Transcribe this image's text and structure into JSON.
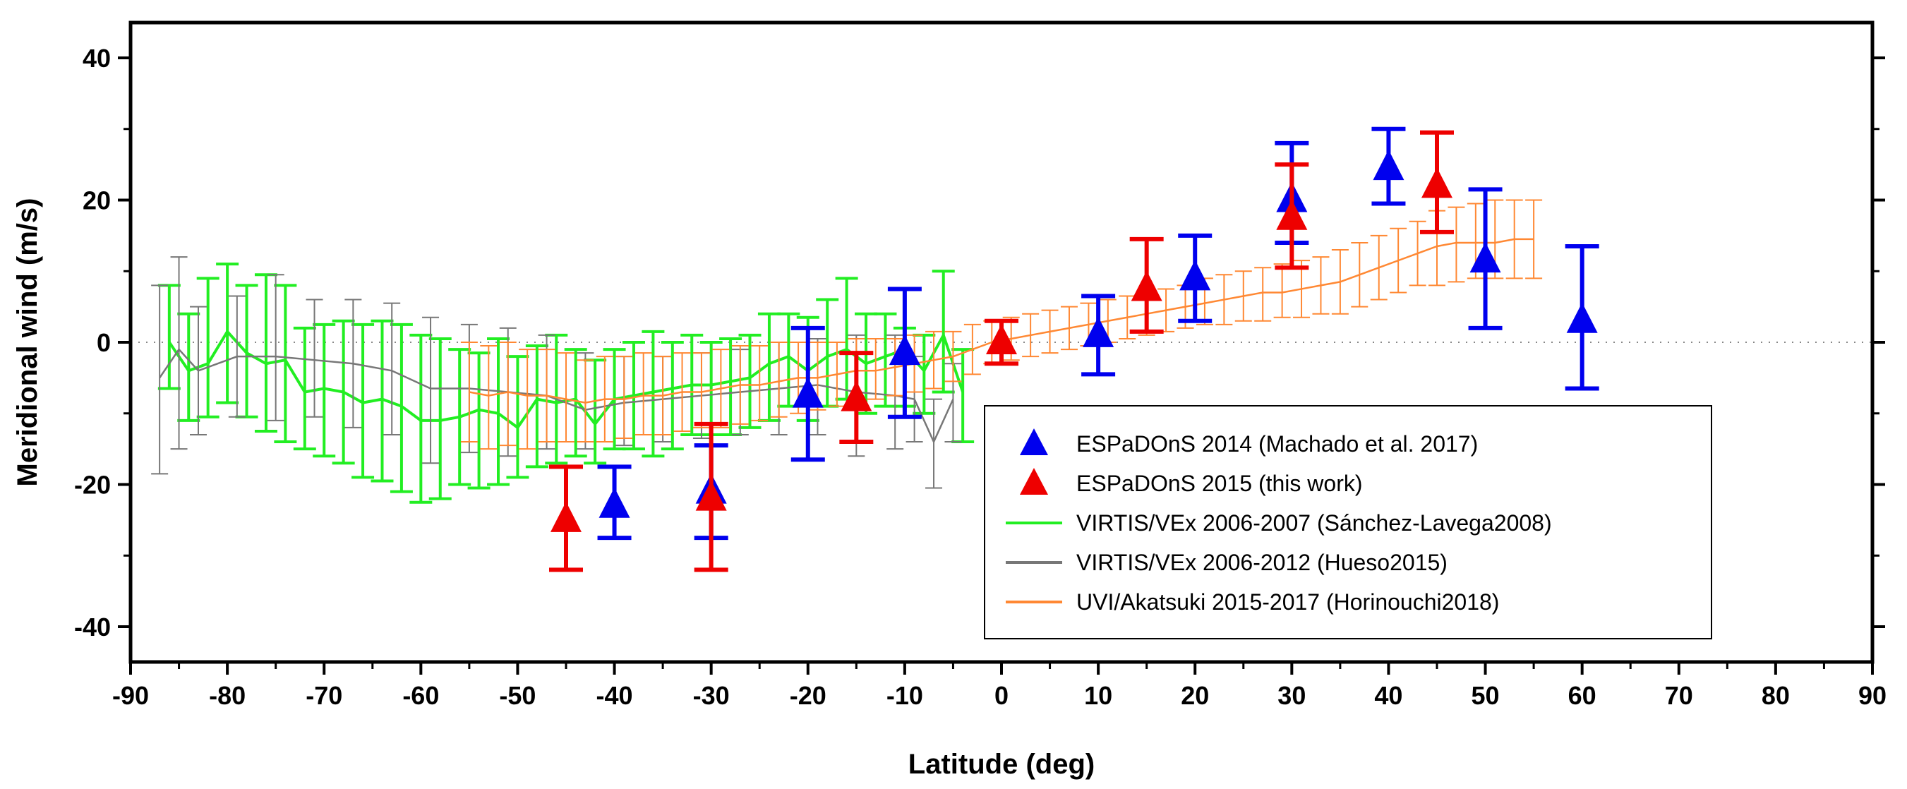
{
  "chart_data": {
    "type": "scatter",
    "title": "",
    "xlabel": "Latitude (deg)",
    "ylabel": "Meridional wind (m/s)",
    "xlim": [
      -90,
      90
    ],
    "ylim": [
      -45,
      45
    ],
    "xticks": [
      -90,
      -80,
      -70,
      -60,
      -50,
      -40,
      -30,
      -20,
      -10,
      0,
      10,
      20,
      30,
      40,
      50,
      60,
      70,
      80,
      90
    ],
    "yticks": [
      -40,
      -20,
      0,
      20,
      40
    ],
    "zero_line": "dotted",
    "legend_position": "bottom-right",
    "series": [
      {
        "name": "ESPaDOnS 2014 (Machado et al. 2017)",
        "kind": "markers",
        "marker": "triangle",
        "color": "#0000ee",
        "points": [
          {
            "x": -40,
            "y": -23,
            "lo": -27.5,
            "hi": -17.5
          },
          {
            "x": -30,
            "y": -21,
            "lo": -27.5,
            "hi": -14.5
          },
          {
            "x": -20,
            "y": -7.5,
            "lo": -16.5,
            "hi": 2
          },
          {
            "x": -10,
            "y": -1.5,
            "lo": -10.5,
            "hi": 7.5
          },
          {
            "x": 10,
            "y": 1,
            "lo": -4.5,
            "hi": 6.5
          },
          {
            "x": 20,
            "y": 9,
            "lo": 3,
            "hi": 15
          },
          {
            "x": 30,
            "y": 20,
            "lo": 14,
            "hi": 28
          },
          {
            "x": 40,
            "y": 24.5,
            "lo": 19.5,
            "hi": 30
          },
          {
            "x": 50,
            "y": 11.5,
            "lo": 2,
            "hi": 21.5
          },
          {
            "x": 60,
            "y": 3,
            "lo": -6.5,
            "hi": 13.5
          }
        ]
      },
      {
        "name": "ESPaDOnS 2015 (this work)",
        "kind": "markers",
        "marker": "triangle",
        "color": "#ee0000",
        "points": [
          {
            "x": -45,
            "y": -25,
            "lo": -32,
            "hi": -17.5
          },
          {
            "x": -30,
            "y": -22,
            "lo": -32,
            "hi": -11.5
          },
          {
            "x": -15,
            "y": -8,
            "lo": -14,
            "hi": -1.5
          },
          {
            "x": 0,
            "y": 0,
            "lo": -3,
            "hi": 3
          },
          {
            "x": 15,
            "y": 7.5,
            "lo": 1.5,
            "hi": 14.5
          },
          {
            "x": 30,
            "y": 17.5,
            "lo": 10.5,
            "hi": 25
          },
          {
            "x": 45,
            "y": 22,
            "lo": 15.5,
            "hi": 29.5
          }
        ]
      },
      {
        "name": "VIRTIS/VEx 2006-2007 (Sánchez-Lavega2008)",
        "kind": "line",
        "color": "#22ee22",
        "points": [
          {
            "x": -86,
            "y": 0,
            "lo": -6.5,
            "hi": 8
          },
          {
            "x": -84,
            "y": -4,
            "lo": -11,
            "hi": 4
          },
          {
            "x": -82,
            "y": -3,
            "lo": -10.5,
            "hi": 9
          },
          {
            "x": -80,
            "y": 1.5,
            "lo": -8.5,
            "hi": 11
          },
          {
            "x": -78,
            "y": -1.5,
            "lo": -10.5,
            "hi": 8
          },
          {
            "x": -76,
            "y": -3,
            "lo": -12.5,
            "hi": 9.5
          },
          {
            "x": -74,
            "y": -2.5,
            "lo": -14,
            "hi": 8
          },
          {
            "x": -72,
            "y": -7,
            "lo": -15,
            "hi": 2
          },
          {
            "x": -70,
            "y": -6.5,
            "lo": -16,
            "hi": 2.5
          },
          {
            "x": -68,
            "y": -7,
            "lo": -17,
            "hi": 3
          },
          {
            "x": -66,
            "y": -8.5,
            "lo": -19,
            "hi": 2.5
          },
          {
            "x": -64,
            "y": -8,
            "lo": -19.5,
            "hi": 3
          },
          {
            "x": -62,
            "y": -9,
            "lo": -21,
            "hi": 2.5
          },
          {
            "x": -60,
            "y": -11,
            "lo": -22.5,
            "hi": 1
          },
          {
            "x": -58,
            "y": -11,
            "lo": -22,
            "hi": 0.5
          },
          {
            "x": -56,
            "y": -10.5,
            "lo": -20,
            "hi": -1
          },
          {
            "x": -54,
            "y": -9.5,
            "lo": -20.5,
            "hi": -1.5
          },
          {
            "x": -52,
            "y": -10,
            "lo": -20,
            "hi": 0.5
          },
          {
            "x": -50,
            "y": -12,
            "lo": -19,
            "hi": -2
          },
          {
            "x": -48,
            "y": -8,
            "lo": -17.5,
            "hi": -0.5
          },
          {
            "x": -46,
            "y": -8.5,
            "lo": -17,
            "hi": 1
          },
          {
            "x": -44,
            "y": -8,
            "lo": -16,
            "hi": -1
          },
          {
            "x": -42,
            "y": -11.5,
            "lo": -17,
            "hi": -2.5
          },
          {
            "x": -40,
            "y": -8,
            "lo": -15,
            "hi": -1
          },
          {
            "x": -38,
            "y": -7.5,
            "lo": -15,
            "hi": 0
          },
          {
            "x": -36,
            "y": -7,
            "lo": -16,
            "hi": 1.5
          },
          {
            "x": -34,
            "y": -6.5,
            "lo": -15,
            "hi": 0
          },
          {
            "x": -32,
            "y": -6,
            "lo": -13,
            "hi": 1
          },
          {
            "x": -30,
            "y": -6,
            "lo": -13,
            "hi": 0
          },
          {
            "x": -28,
            "y": -5.5,
            "lo": -13,
            "hi": 0.5
          },
          {
            "x": -26,
            "y": -5,
            "lo": -12,
            "hi": 1
          },
          {
            "x": -24,
            "y": -3,
            "lo": -11,
            "hi": 4
          },
          {
            "x": -22,
            "y": -2,
            "lo": -9,
            "hi": 4
          },
          {
            "x": -20,
            "y": -4,
            "lo": -11,
            "hi": 3.5
          },
          {
            "x": -18,
            "y": -2,
            "lo": -9,
            "hi": 6
          },
          {
            "x": -16,
            "y": -1,
            "lo": -8,
            "hi": 9
          },
          {
            "x": -14,
            "y": -3,
            "lo": -10,
            "hi": 4
          },
          {
            "x": -12,
            "y": -2,
            "lo": -9,
            "hi": 4
          },
          {
            "x": -10,
            "y": -1,
            "lo": -9,
            "hi": 2
          },
          {
            "x": -8,
            "y": -4,
            "lo": -10,
            "hi": 1
          },
          {
            "x": -6,
            "y": 1,
            "lo": -7,
            "hi": 10
          },
          {
            "x": -4,
            "y": -7,
            "lo": -14,
            "hi": -1
          }
        ]
      },
      {
        "name": "VIRTIS/VEx 2006-2012 (Hueso2015)",
        "kind": "line",
        "color": "#777777",
        "points": [
          {
            "x": -87,
            "y": -5,
            "lo": -18.5,
            "hi": 8
          },
          {
            "x": -85,
            "y": -1,
            "lo": -15,
            "hi": 12
          },
          {
            "x": -83,
            "y": -4,
            "lo": -13,
            "hi": 5
          },
          {
            "x": -79,
            "y": -2,
            "lo": -10.5,
            "hi": 6.5
          },
          {
            "x": -75,
            "y": -2,
            "lo": -11,
            "hi": 9.5
          },
          {
            "x": -71,
            "y": -2.5,
            "lo": -10.5,
            "hi": 6
          },
          {
            "x": -67,
            "y": -3,
            "lo": -12,
            "hi": 6
          },
          {
            "x": -63,
            "y": -4,
            "lo": -13,
            "hi": 5.5
          },
          {
            "x": -59,
            "y": -6.5,
            "lo": -17,
            "hi": 3.5
          },
          {
            "x": -55,
            "y": -6.5,
            "lo": -15.5,
            "hi": 2.5
          },
          {
            "x": -51,
            "y": -7,
            "lo": -16,
            "hi": 2
          },
          {
            "x": -47,
            "y": -7.5,
            "lo": -15,
            "hi": 1
          },
          {
            "x": -43,
            "y": -9.5,
            "lo": -15,
            "hi": -1.5
          },
          {
            "x": -39,
            "y": -8.5,
            "lo": -14.5,
            "hi": -2
          },
          {
            "x": -35,
            "y": -8,
            "lo": -14,
            "hi": -2
          },
          {
            "x": -31,
            "y": -7.5,
            "lo": -13.5,
            "hi": -1.5
          },
          {
            "x": -27,
            "y": -7,
            "lo": -13,
            "hi": -1
          },
          {
            "x": -23,
            "y": -6.5,
            "lo": -13,
            "hi": 0
          },
          {
            "x": -19,
            "y": -6,
            "lo": -13,
            "hi": 0.5
          },
          {
            "x": -15,
            "y": -7,
            "lo": -16,
            "hi": 1
          },
          {
            "x": -11,
            "y": -7.5,
            "lo": -15,
            "hi": 1
          },
          {
            "x": -9,
            "y": -8,
            "lo": -14,
            "hi": -2
          },
          {
            "x": -7,
            "y": -14,
            "lo": -20.5,
            "hi": -8
          },
          {
            "x": -5,
            "y": -8,
            "lo": -14,
            "hi": -3
          }
        ]
      },
      {
        "name": "UVI/Akatsuki 2015-2017 (Horinouchi2018)",
        "kind": "line",
        "color": "#ff8833",
        "points": [
          {
            "x": -55,
            "y": -7,
            "lo": -14,
            "hi": 0
          },
          {
            "x": -53,
            "y": -7.5,
            "lo": -15,
            "hi": -0.5
          },
          {
            "x": -51,
            "y": -7,
            "lo": -14.5,
            "hi": 0
          },
          {
            "x": -49,
            "y": -7.5,
            "lo": -15,
            "hi": -1
          },
          {
            "x": -47,
            "y": -7.5,
            "lo": -14,
            "hi": -1
          },
          {
            "x": -45,
            "y": -8,
            "lo": -14,
            "hi": -1.5
          },
          {
            "x": -43,
            "y": -8.5,
            "lo": -14,
            "hi": -2.5
          },
          {
            "x": -41,
            "y": -8,
            "lo": -14,
            "hi": -2
          },
          {
            "x": -39,
            "y": -8,
            "lo": -13.5,
            "hi": -2
          },
          {
            "x": -37,
            "y": -7.5,
            "lo": -13,
            "hi": -1.5
          },
          {
            "x": -35,
            "y": -7.5,
            "lo": -13,
            "hi": -2
          },
          {
            "x": -33,
            "y": -7,
            "lo": -12.5,
            "hi": -1.5
          },
          {
            "x": -31,
            "y": -7,
            "lo": -12,
            "hi": -1.5
          },
          {
            "x": -29,
            "y": -6.5,
            "lo": -12,
            "hi": -1
          },
          {
            "x": -27,
            "y": -6,
            "lo": -11.5,
            "hi": -0.5
          },
          {
            "x": -25,
            "y": -6,
            "lo": -11,
            "hi": -0.5
          },
          {
            "x": -23,
            "y": -5.5,
            "lo": -10.5,
            "hi": 0
          },
          {
            "x": -21,
            "y": -5,
            "lo": -10,
            "hi": 0
          },
          {
            "x": -19,
            "y": -5,
            "lo": -9.5,
            "hi": 0
          },
          {
            "x": -17,
            "y": -4.5,
            "lo": -9,
            "hi": 0
          },
          {
            "x": -15,
            "y": -4,
            "lo": -8.5,
            "hi": 0.5
          },
          {
            "x": -13,
            "y": -4,
            "lo": -8,
            "hi": 0.5
          },
          {
            "x": -11,
            "y": -3.5,
            "lo": -7.5,
            "hi": 0.5
          },
          {
            "x": -9,
            "y": -3,
            "lo": -7,
            "hi": 1
          },
          {
            "x": -7,
            "y": -2.5,
            "lo": -6.5,
            "hi": 1.5
          },
          {
            "x": -5,
            "y": -2,
            "lo": -5.5,
            "hi": 1.5
          },
          {
            "x": -3,
            "y": -1,
            "lo": -4.5,
            "hi": 2.5
          },
          {
            "x": -1,
            "y": 0,
            "lo": -3,
            "hi": 3
          },
          {
            "x": 1,
            "y": 0.5,
            "lo": -2.5,
            "hi": 3.5
          },
          {
            "x": 3,
            "y": 1,
            "lo": -2,
            "hi": 4
          },
          {
            "x": 5,
            "y": 1.5,
            "lo": -1.5,
            "hi": 4.5
          },
          {
            "x": 7,
            "y": 2,
            "lo": -1,
            "hi": 5
          },
          {
            "x": 9,
            "y": 2.5,
            "lo": -0.5,
            "hi": 5.5
          },
          {
            "x": 11,
            "y": 3,
            "lo": 0,
            "hi": 6
          },
          {
            "x": 13,
            "y": 3.5,
            "lo": 0.5,
            "hi": 6.5
          },
          {
            "x": 15,
            "y": 4,
            "lo": 1,
            "hi": 7
          },
          {
            "x": 17,
            "y": 4.5,
            "lo": 1.5,
            "hi": 7.5
          },
          {
            "x": 19,
            "y": 5,
            "lo": 2,
            "hi": 8
          },
          {
            "x": 21,
            "y": 5.5,
            "lo": 2.5,
            "hi": 9
          },
          {
            "x": 23,
            "y": 6,
            "lo": 2.5,
            "hi": 9.5
          },
          {
            "x": 25,
            "y": 6.5,
            "lo": 3,
            "hi": 10
          },
          {
            "x": 27,
            "y": 7,
            "lo": 3,
            "hi": 10.5
          },
          {
            "x": 29,
            "y": 7,
            "lo": 3.5,
            "hi": 11
          },
          {
            "x": 31,
            "y": 7.5,
            "lo": 3.5,
            "hi": 11.5
          },
          {
            "x": 33,
            "y": 8,
            "lo": 4,
            "hi": 12
          },
          {
            "x": 35,
            "y": 8.5,
            "lo": 4,
            "hi": 13
          },
          {
            "x": 37,
            "y": 9.5,
            "lo": 5,
            "hi": 14
          },
          {
            "x": 39,
            "y": 10.5,
            "lo": 6,
            "hi": 15
          },
          {
            "x": 41,
            "y": 11.5,
            "lo": 7,
            "hi": 16
          },
          {
            "x": 43,
            "y": 12.5,
            "lo": 8,
            "hi": 17
          },
          {
            "x": 45,
            "y": 13.5,
            "lo": 8,
            "hi": 18.5
          },
          {
            "x": 47,
            "y": 14,
            "lo": 8.5,
            "hi": 19
          },
          {
            "x": 49,
            "y": 14,
            "lo": 9,
            "hi": 19.5
          },
          {
            "x": 51,
            "y": 14,
            "lo": 9,
            "hi": 20
          },
          {
            "x": 53,
            "y": 14.5,
            "lo": 9,
            "hi": 20
          },
          {
            "x": 55,
            "y": 14.5,
            "lo": 9,
            "hi": 20
          }
        ]
      }
    ]
  }
}
